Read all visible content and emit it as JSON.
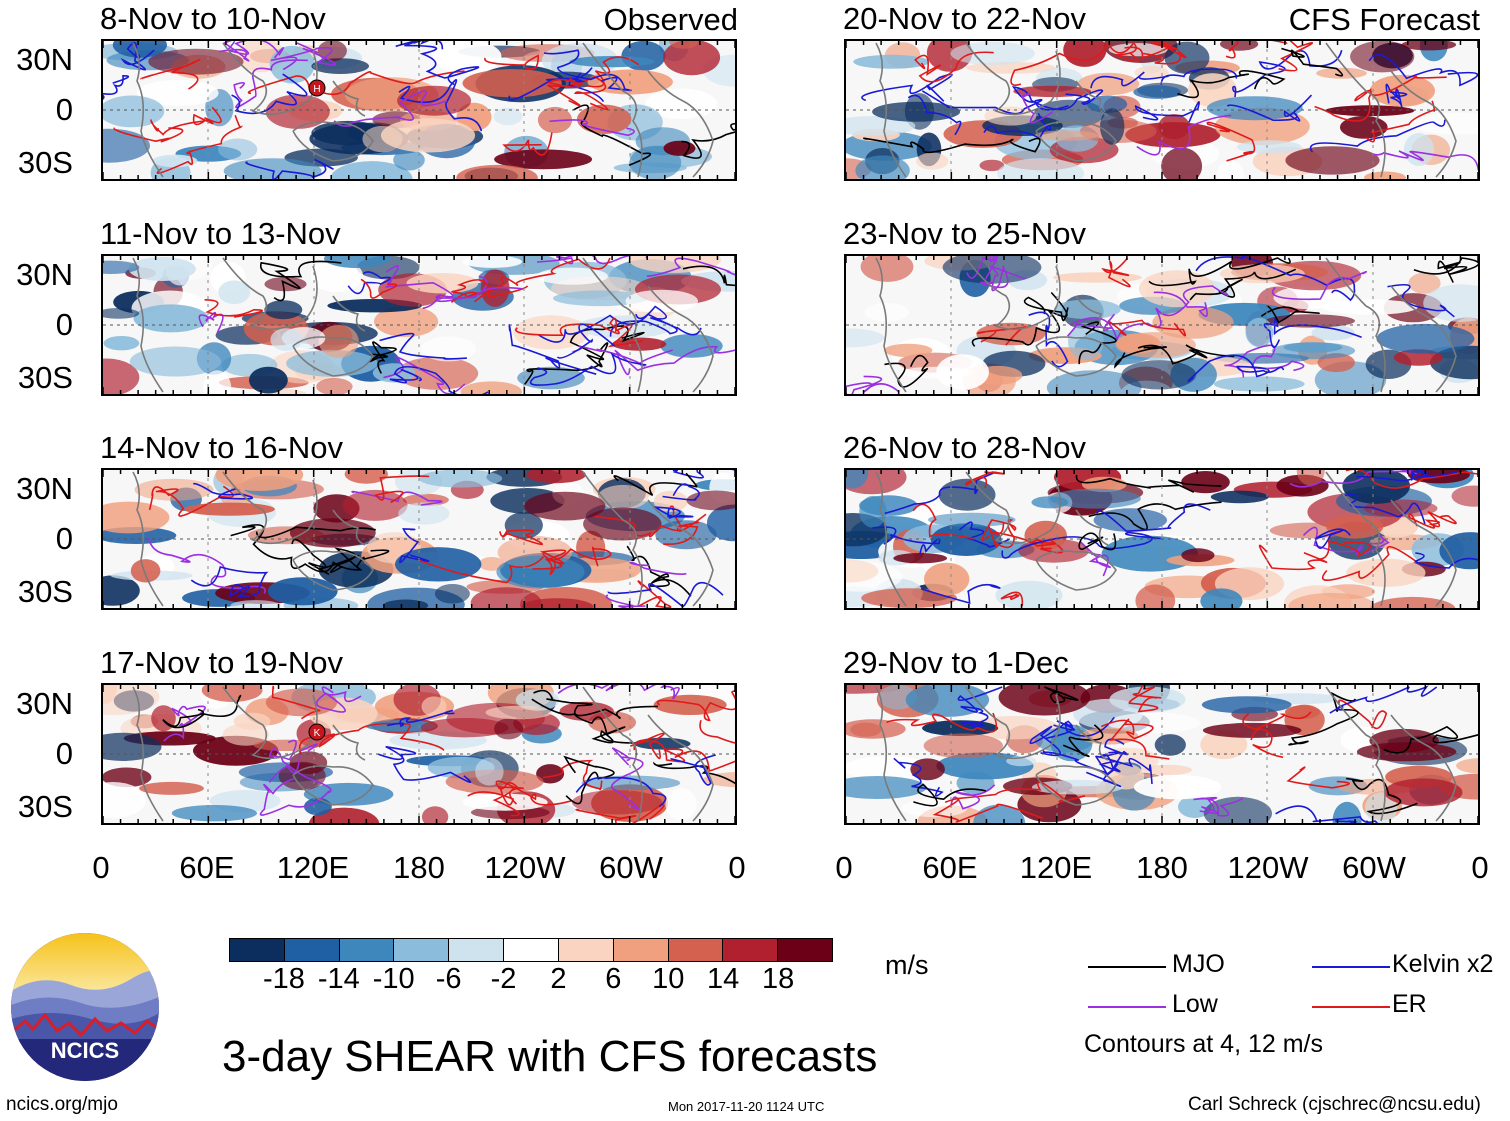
{
  "left_column_label": "Observed",
  "right_column_label": "CFS Forecast",
  "panels_left": [
    {
      "title": "8-Nov to 10-Nov",
      "storm": "H"
    },
    {
      "title": "11-Nov to 13-Nov",
      "storm": ""
    },
    {
      "title": "14-Nov to 16-Nov",
      "storm": ""
    },
    {
      "title": "17-Nov to 19-Nov",
      "storm": "K"
    }
  ],
  "panels_right": [
    {
      "title": "20-Nov to 22-Nov"
    },
    {
      "title": "23-Nov to 25-Nov"
    },
    {
      "title": "26-Nov to 28-Nov"
    },
    {
      "title": "29-Nov to 1-Dec"
    }
  ],
  "y_ticks": [
    "30N",
    "0",
    "30S"
  ],
  "x_ticks": [
    "0",
    "60E",
    "120E",
    "180",
    "120W",
    "60W",
    "0"
  ],
  "colorbar": {
    "labels": [
      "-18",
      "-14",
      "-10",
      "-6",
      "-2",
      "2",
      "6",
      "10",
      "14",
      "18"
    ],
    "colors": [
      "#0b2e5e",
      "#1f5fa3",
      "#3d87bd",
      "#8bbcdb",
      "#cfe3ef",
      "#ffffff",
      "#fad4c0",
      "#f0a07e",
      "#d4604f",
      "#b0202e",
      "#6b0016"
    ],
    "units": "m/s"
  },
  "legend": {
    "items": [
      {
        "label": "MJO",
        "color": "#000000"
      },
      {
        "label": "Kelvin x2",
        "color": "#1a1ad6"
      },
      {
        "label": "Low",
        "color": "#9b30e0"
      },
      {
        "label": "ER",
        "color": "#e01a1a"
      }
    ],
    "note": "Contours at 4, 12 m/s"
  },
  "main_title": "3-day SHEAR with CFS forecasts",
  "logo_text": "NCICS",
  "footer": {
    "left": "ncics.org/mjo",
    "center": "Mon 2017-11-20 1124 UTC",
    "right": "Carl Schreck (cjschrec@ncsu.edu)"
  }
}
